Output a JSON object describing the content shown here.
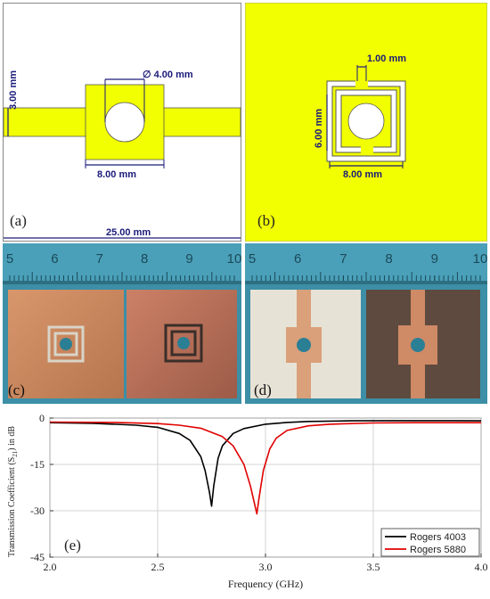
{
  "panel_a": {
    "label": "(a)",
    "dim_width": "25.00 mm",
    "dim_height": "3.00 mm",
    "dim_center": "8.00 mm",
    "dim_hole": "∅ 4.00 mm"
  },
  "panel_b": {
    "label": "(b)",
    "dim_gap": "1.00 mm",
    "dim_height": "6.00 mm",
    "dim_width": "8.00 mm"
  },
  "panel_c": {
    "label": "(c)"
  },
  "panel_d": {
    "label": "(d)"
  },
  "ruler_c": [
    "5",
    "6",
    "7",
    "8",
    "9",
    "10"
  ],
  "ruler_d": [
    "5",
    "6",
    "7",
    "8",
    "9",
    "10"
  ],
  "colors": {
    "copper": "#f2ff00",
    "dimension": "#1a1a7a",
    "ruler": "#3c8fa6",
    "rogers4003": "#000000",
    "rogers5880": "#e00000"
  },
  "chart_data": {
    "type": "line",
    "label": "(e)",
    "xlabel": "Frequency (GHz)",
    "ylabel_main": "Transmission Coefficient (S",
    "ylabel_sub": "21",
    "ylabel_tail": ") in dB",
    "xlim": [
      2.0,
      4.0
    ],
    "ylim": [
      -45,
      0
    ],
    "xticks": [
      "2.0",
      "2.5",
      "3.0",
      "3.5",
      "4.0"
    ],
    "yticks": [
      "0",
      "-15",
      "-30",
      "-45"
    ],
    "grid": true,
    "legend_position": "bottom-right",
    "series": [
      {
        "name": "Rogers 4003",
        "color": "#000000",
        "x": [
          2.0,
          2.2,
          2.4,
          2.5,
          2.6,
          2.65,
          2.7,
          2.72,
          2.74,
          2.75,
          2.76,
          2.78,
          2.8,
          2.85,
          2.9,
          3.0,
          3.1,
          3.2,
          3.4,
          3.6,
          3.8,
          4.0
        ],
        "y": [
          -1.5,
          -1.7,
          -2.3,
          -3.0,
          -5.0,
          -7.2,
          -12.5,
          -17.0,
          -24.0,
          -28.5,
          -22.0,
          -13.0,
          -9.0,
          -5.0,
          -3.4,
          -2.0,
          -1.4,
          -1.1,
          -0.9,
          -0.85,
          -0.85,
          -0.9
        ]
      },
      {
        "name": "Rogers 5880",
        "color": "#e00000",
        "x": [
          2.0,
          2.3,
          2.5,
          2.6,
          2.7,
          2.8,
          2.85,
          2.9,
          2.93,
          2.95,
          2.96,
          2.97,
          2.99,
          3.02,
          3.05,
          3.1,
          3.2,
          3.3,
          3.5,
          3.7,
          4.0
        ],
        "y": [
          -1.3,
          -1.4,
          -1.8,
          -2.3,
          -3.3,
          -6.0,
          -9.0,
          -15.0,
          -22.0,
          -28.0,
          -31.0,
          -26.0,
          -17.0,
          -10.0,
          -6.5,
          -4.0,
          -2.5,
          -2.0,
          -1.6,
          -1.5,
          -1.5
        ]
      }
    ]
  }
}
